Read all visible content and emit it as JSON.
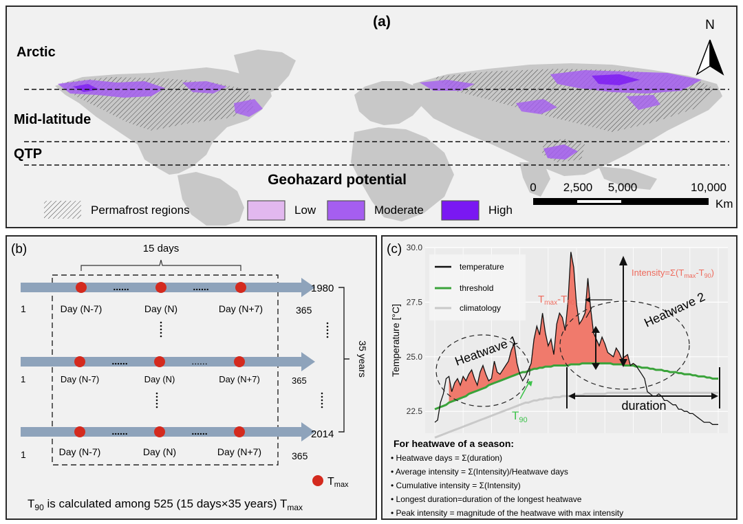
{
  "panel_a": {
    "label": "(a)",
    "north": "N",
    "regions": [
      "Arctic",
      "Mid-latitude",
      "QTP"
    ],
    "title": "Geohazard potential",
    "scale": {
      "ticks": [
        "0",
        "2,500",
        "5,000",
        "10,000"
      ],
      "unit": "Km"
    },
    "legend": {
      "permafrost": "Permafrost regions",
      "low": "Low",
      "moderate": "Moderate",
      "high": "High"
    },
    "colors": {
      "land": "#c8c8c8",
      "low": "#e2b8ef",
      "moderate": "#a55ef0",
      "high": "#7a18f2"
    }
  },
  "panel_b": {
    "label": "(b)",
    "window": "15 days",
    "years": [
      "1980",
      "2014"
    ],
    "start": "1",
    "end": "365",
    "day_labels": [
      "Day (N-7)",
      "Day (N)",
      "Day (N+7)"
    ],
    "span_label": "35 years",
    "dots": "......",
    "legend_main": "T",
    "legend_sub": "max",
    "formula": {
      "t": "T",
      "s1": "90",
      "mid": " is calculated among 525 (15 days×35 years) T",
      "s2": "max"
    }
  },
  "panel_c": {
    "label": "(c)",
    "chart_data": {
      "type": "line",
      "ylabel": "Temperature [°C]",
      "yticks": [
        "30.0",
        "27.5",
        "25.0",
        "22.5"
      ],
      "ylim": [
        21.5,
        30.0
      ],
      "legend": [
        "temperature",
        "threshold",
        "climatology"
      ],
      "x": [
        0,
        1,
        2,
        3,
        4,
        5,
        6,
        7,
        8,
        9,
        10,
        11,
        12,
        13,
        14,
        15,
        16,
        17,
        18,
        19,
        20,
        21,
        22,
        23,
        24,
        25,
        26,
        27,
        28,
        29,
        30,
        31,
        32,
        33,
        34,
        35,
        36,
        37,
        38,
        39,
        40,
        41,
        42,
        43,
        44,
        45,
        46,
        47,
        48,
        49,
        50,
        51,
        52,
        53,
        54,
        55,
        56,
        57,
        58,
        59,
        60,
        61,
        62,
        63,
        64,
        65,
        66,
        67,
        68,
        69,
        70,
        71,
        72,
        73,
        74,
        75,
        76,
        77,
        78,
        79,
        80,
        81,
        82,
        83,
        84,
        85,
        86,
        87,
        88,
        89,
        90,
        91,
        92,
        93,
        94,
        95,
        96,
        97,
        98,
        99,
        100
      ],
      "temperature": [
        22.0,
        22.1,
        22.9,
        23.3,
        24.0,
        24.1,
        23.4,
        23.8,
        24.0,
        23.7,
        24.1,
        23.9,
        24.2,
        24.4,
        24.0,
        23.7,
        24.3,
        24.6,
        24.2,
        23.9,
        24.0,
        24.8,
        24.3,
        24.2,
        24.4,
        24.6,
        24.8,
        25.3,
        25.6,
        24.7,
        24.2,
        23.9,
        24.1,
        24.4,
        24.7,
        25.8,
        26.4,
        26.0,
        27.0,
        26.1,
        25.5,
        25.8,
        25.1,
        26.5,
        27.0,
        26.8,
        26.2,
        27.5,
        29.8,
        29.1,
        27.4,
        26.5,
        26.7,
        27.0,
        28.6,
        27.2,
        26.1,
        25.8,
        25.5,
        25.9,
        25.6,
        25.2,
        25.1,
        25.0,
        25.4,
        25.2,
        24.9,
        25.0,
        25.1,
        24.6,
        24.7,
        24.6,
        24.4,
        24.2,
        24.0,
        23.4,
        23.3,
        23.2,
        23.2,
        23.3,
        23.2,
        23.0,
        23.0,
        22.9,
        22.8,
        22.8,
        22.6,
        22.6,
        22.5,
        22.5,
        22.4,
        22.4,
        22.3,
        22.2,
        22.1,
        22.0,
        22.0,
        22.0,
        21.9,
        21.9,
        21.9
      ],
      "threshold": [
        22.6,
        22.65,
        22.7,
        22.75,
        22.8,
        22.9,
        22.95,
        23.0,
        23.05,
        23.1,
        23.15,
        23.2,
        23.3,
        23.35,
        23.4,
        23.45,
        23.5,
        23.55,
        23.6,
        23.7,
        23.75,
        23.8,
        23.85,
        23.9,
        23.95,
        24.0,
        24.05,
        24.1,
        24.15,
        24.2,
        24.25,
        24.3,
        24.3,
        24.35,
        24.4,
        24.45,
        24.45,
        24.5,
        24.5,
        24.55,
        24.55,
        24.55,
        24.6,
        24.6,
        24.6,
        24.6,
        24.6,
        24.6,
        24.65,
        24.65,
        24.65,
        24.65,
        24.7,
        24.7,
        24.7,
        24.7,
        24.7,
        24.7,
        24.7,
        24.7,
        24.7,
        24.7,
        24.7,
        24.65,
        24.65,
        24.65,
        24.65,
        24.6,
        24.6,
        24.6,
        24.6,
        24.55,
        24.55,
        24.5,
        24.5,
        24.5,
        24.45,
        24.45,
        24.4,
        24.4,
        24.4,
        24.35,
        24.35,
        24.3,
        24.3,
        24.3,
        24.25,
        24.25,
        24.2,
        24.2,
        24.2,
        24.15,
        24.15,
        24.1,
        24.1,
        24.1,
        24.05,
        24.05,
        24.0,
        24.0,
        24.0
      ],
      "climatology": [
        21.3,
        21.35,
        21.4,
        21.45,
        21.5,
        21.55,
        21.6,
        21.65,
        21.7,
        21.75,
        21.8,
        21.85,
        21.9,
        21.95,
        22.0,
        22.05,
        22.1,
        22.15,
        22.2,
        22.25,
        22.3,
        22.35,
        22.4,
        22.45,
        22.5,
        22.55,
        22.6,
        22.65,
        22.7,
        22.75,
        22.8,
        22.85,
        22.9,
        22.9,
        22.95,
        23.0,
        23.0,
        23.05,
        23.05,
        23.1,
        23.1,
        23.1,
        23.15,
        23.15,
        23.15,
        23.2,
        23.2,
        23.2,
        23.2,
        23.25,
        23.25,
        23.25,
        23.25,
        23.3,
        23.3,
        23.3,
        23.3,
        23.3,
        23.3,
        23.3,
        23.3,
        23.35,
        23.35,
        23.35,
        23.35,
        23.35,
        23.35,
        23.35,
        23.35,
        23.35,
        23.35,
        23.35,
        23.35,
        23.35,
        23.35,
        23.35,
        23.35,
        23.35,
        23.35,
        23.35,
        23.35,
        23.35,
        23.35,
        23.35,
        23.35,
        23.35,
        23.35,
        23.35,
        23.35,
        23.35,
        23.35,
        23.35,
        23.35,
        23.35,
        23.35,
        23.35,
        23.35,
        23.35,
        23.35,
        23.35,
        23.35
      ],
      "heatwave_1_x": [
        5,
        32
      ],
      "heatwave_2_x": [
        32,
        71
      ],
      "annotations": {
        "intensity": "Intensity=Σ(T",
        "intensity_sub1": "max",
        "intensity_mid": "-T",
        "intensity_sub2": "90",
        "intensity_end": ")",
        "tdiff_t": "T",
        "tdiff_s1": "max",
        "tdiff_mid": "-T",
        "tdiff_s2": "90",
        "heatwave1": "Heatwave 1",
        "heatwave2": "Heatwave 2",
        "duration": "duration",
        "t90_t": "T",
        "t90_s": "90"
      }
    },
    "notes_title": "For heatwave of a season:",
    "notes": [
      "Heatwave days = Σ(duration)",
      "Average intensity = Σ(Intensity)/Heatwave days",
      "Cumulative intensity = Σ(Intensity)",
      "Longest duration=duration of the longest heatwave",
      "Peak intensity = magnitude of the heatwave with max intensity"
    ],
    "colors": {
      "fill": "#f07a6c",
      "threshold": "#3aa33a",
      "climatology": "#c9c9c9",
      "accent": "#ee6a5c",
      "t90": "#3cc24a"
    }
  }
}
